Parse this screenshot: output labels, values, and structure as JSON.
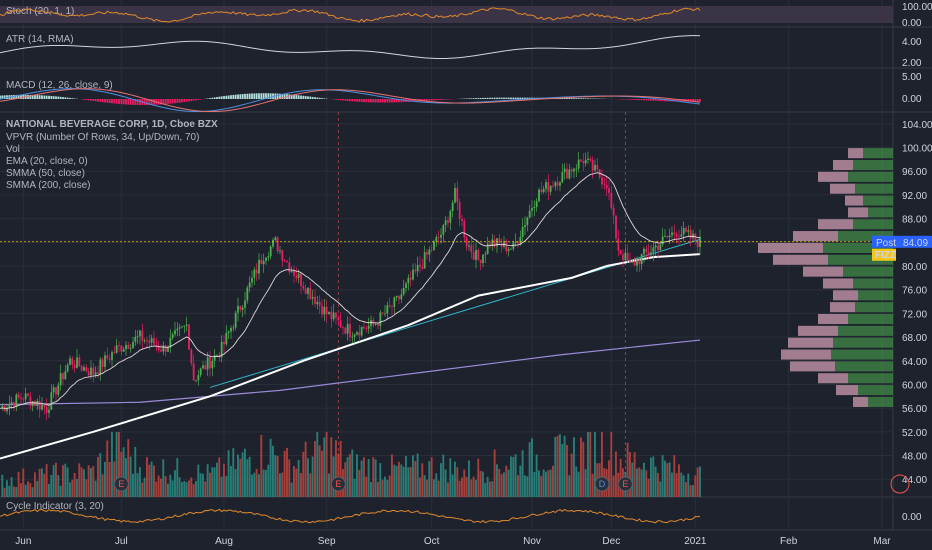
{
  "colors": {
    "background": "#1e222d",
    "grid": "#2a2e39",
    "up": "#26a69a",
    "down": "#ef5350",
    "candle_up": "#4caf50",
    "candle_down": "#e91e63",
    "ema": "#e0d7da",
    "sma50": "#ffffff",
    "sma200": "#9b8bd8",
    "trendline": "#2fb3c9",
    "post_badge": "#2962ff",
    "fizz_badge": "#f5c518",
    "vp_up": "#4caf50",
    "vp_down": "#f8bbd0"
  },
  "panes": {
    "stoch": {
      "label": "Stoch (20, 1, 1)",
      "ticks": [
        "100.00",
        "0.00"
      ]
    },
    "atr": {
      "label": "ATR (14, RMA)",
      "ticks": [
        "4.00",
        "2.00"
      ]
    },
    "macd": {
      "label": "MACD (12, 26, close, 9)",
      "ticks": [
        "5.00",
        "0.00"
      ]
    },
    "main": {
      "legend": [
        "NATIONAL BEVERAGE CORP, 1D, Cboe BZX",
        "VPVR (Number Of Rows, 34, Up/Down, 70)",
        "Vol",
        "EMA (20, close, 0)",
        "SMMA (50, close)",
        "SMMA (200, close)"
      ],
      "post_label": "Post",
      "post_value": "84.09",
      "symbol": "FIZZ"
    },
    "cycle": {
      "label": "Cycle Indicator (3, 20)",
      "ticks": [
        "0.00"
      ]
    }
  },
  "xaxis": {
    "labels": [
      "Jun",
      "Jul",
      "Aug",
      "Sep",
      "Oct",
      "Nov",
      "Dec",
      "2021",
      "Feb",
      "Mar"
    ]
  },
  "events": [
    "E",
    "E",
    "D",
    "E"
  ],
  "chart_data": {
    "type": "candlestick",
    "title": "NATIONAL BEVERAGE CORP, 1D, Cboe BZX",
    "yticks": [
      44,
      48,
      52,
      56,
      60,
      64,
      68,
      72,
      76,
      80,
      84,
      88,
      92,
      96,
      100,
      104
    ],
    "ylim": [
      41,
      106
    ],
    "last_price": 84.09,
    "close_path": [
      [
        0,
        56
      ],
      [
        10,
        58
      ],
      [
        20,
        56
      ],
      [
        30,
        64
      ],
      [
        40,
        62
      ],
      [
        50,
        66
      ],
      [
        60,
        68
      ],
      [
        70,
        66
      ],
      [
        80,
        70
      ],
      [
        83,
        61
      ],
      [
        95,
        66
      ],
      [
        105,
        75
      ],
      [
        113,
        82
      ],
      [
        118,
        84
      ],
      [
        124,
        80
      ],
      [
        130,
        77
      ],
      [
        140,
        72
      ],
      [
        150,
        69
      ],
      [
        160,
        70
      ],
      [
        170,
        74
      ],
      [
        180,
        80
      ],
      [
        190,
        86
      ],
      [
        195,
        92
      ],
      [
        200,
        84
      ],
      [
        205,
        81
      ],
      [
        210,
        84
      ],
      [
        220,
        83
      ],
      [
        230,
        92
      ],
      [
        240,
        95
      ],
      [
        250,
        98
      ],
      [
        255,
        96
      ],
      [
        260,
        94
      ],
      [
        265,
        83
      ],
      [
        270,
        80
      ],
      [
        280,
        83
      ],
      [
        290,
        86
      ],
      [
        300,
        84
      ]
    ],
    "volume_path": [
      [
        0,
        30
      ],
      [
        20,
        40
      ],
      [
        40,
        45
      ],
      [
        50,
        100
      ],
      [
        60,
        55
      ],
      [
        80,
        45
      ],
      [
        90,
        40
      ],
      [
        100,
        60
      ],
      [
        115,
        85
      ],
      [
        125,
        55
      ],
      [
        140,
        90
      ],
      [
        150,
        60
      ],
      [
        170,
        50
      ],
      [
        190,
        55
      ],
      [
        200,
        45
      ],
      [
        215,
        60
      ],
      [
        225,
        70
      ],
      [
        240,
        75
      ],
      [
        255,
        90
      ],
      [
        260,
        100
      ],
      [
        265,
        70
      ],
      [
        280,
        60
      ],
      [
        300,
        40
      ]
    ],
    "indicators": {
      "sma50": [
        [
          0,
          47.5
        ],
        [
          40,
          52
        ],
        [
          90,
          58
        ],
        [
          130,
          64
        ],
        [
          175,
          70
        ],
        [
          205,
          75
        ],
        [
          245,
          78
        ],
        [
          260,
          80
        ],
        [
          280,
          81.5
        ],
        [
          300,
          82
        ]
      ],
      "sma200": [
        [
          0,
          56.6
        ],
        [
          60,
          57
        ],
        [
          120,
          59
        ],
        [
          180,
          62
        ],
        [
          240,
          65
        ],
        [
          300,
          67.5
        ]
      ],
      "trendline": [
        [
          90,
          59.5
        ],
        [
          300,
          84.5
        ]
      ]
    },
    "volume_profile": [
      {
        "price": 99,
        "up": 30,
        "down": 15
      },
      {
        "price": 97,
        "up": 40,
        "down": 20
      },
      {
        "price": 95,
        "up": 45,
        "down": 30
      },
      {
        "price": 93,
        "up": 38,
        "down": 25
      },
      {
        "price": 91,
        "up": 30,
        "down": 18
      },
      {
        "price": 89,
        "up": 25,
        "down": 20
      },
      {
        "price": 87,
        "up": 40,
        "down": 35
      },
      {
        "price": 85,
        "up": 55,
        "down": 45
      },
      {
        "price": 83,
        "up": 70,
        "down": 65
      },
      {
        "price": 81,
        "up": 65,
        "down": 55
      },
      {
        "price": 79,
        "up": 50,
        "down": 40
      },
      {
        "price": 77,
        "up": 40,
        "down": 30
      },
      {
        "price": 75,
        "up": 35,
        "down": 25
      },
      {
        "price": 73,
        "up": 38,
        "down": 25
      },
      {
        "price": 71,
        "up": 45,
        "down": 30
      },
      {
        "price": 69,
        "up": 55,
        "down": 40
      },
      {
        "price": 67,
        "up": 60,
        "down": 45
      },
      {
        "price": 65,
        "up": 62,
        "down": 50
      },
      {
        "price": 63,
        "up": 58,
        "down": 45
      },
      {
        "price": 61,
        "up": 45,
        "down": 30
      },
      {
        "price": 59,
        "up": 35,
        "down": 22
      },
      {
        "price": 57,
        "up": 25,
        "down": 15
      }
    ]
  }
}
